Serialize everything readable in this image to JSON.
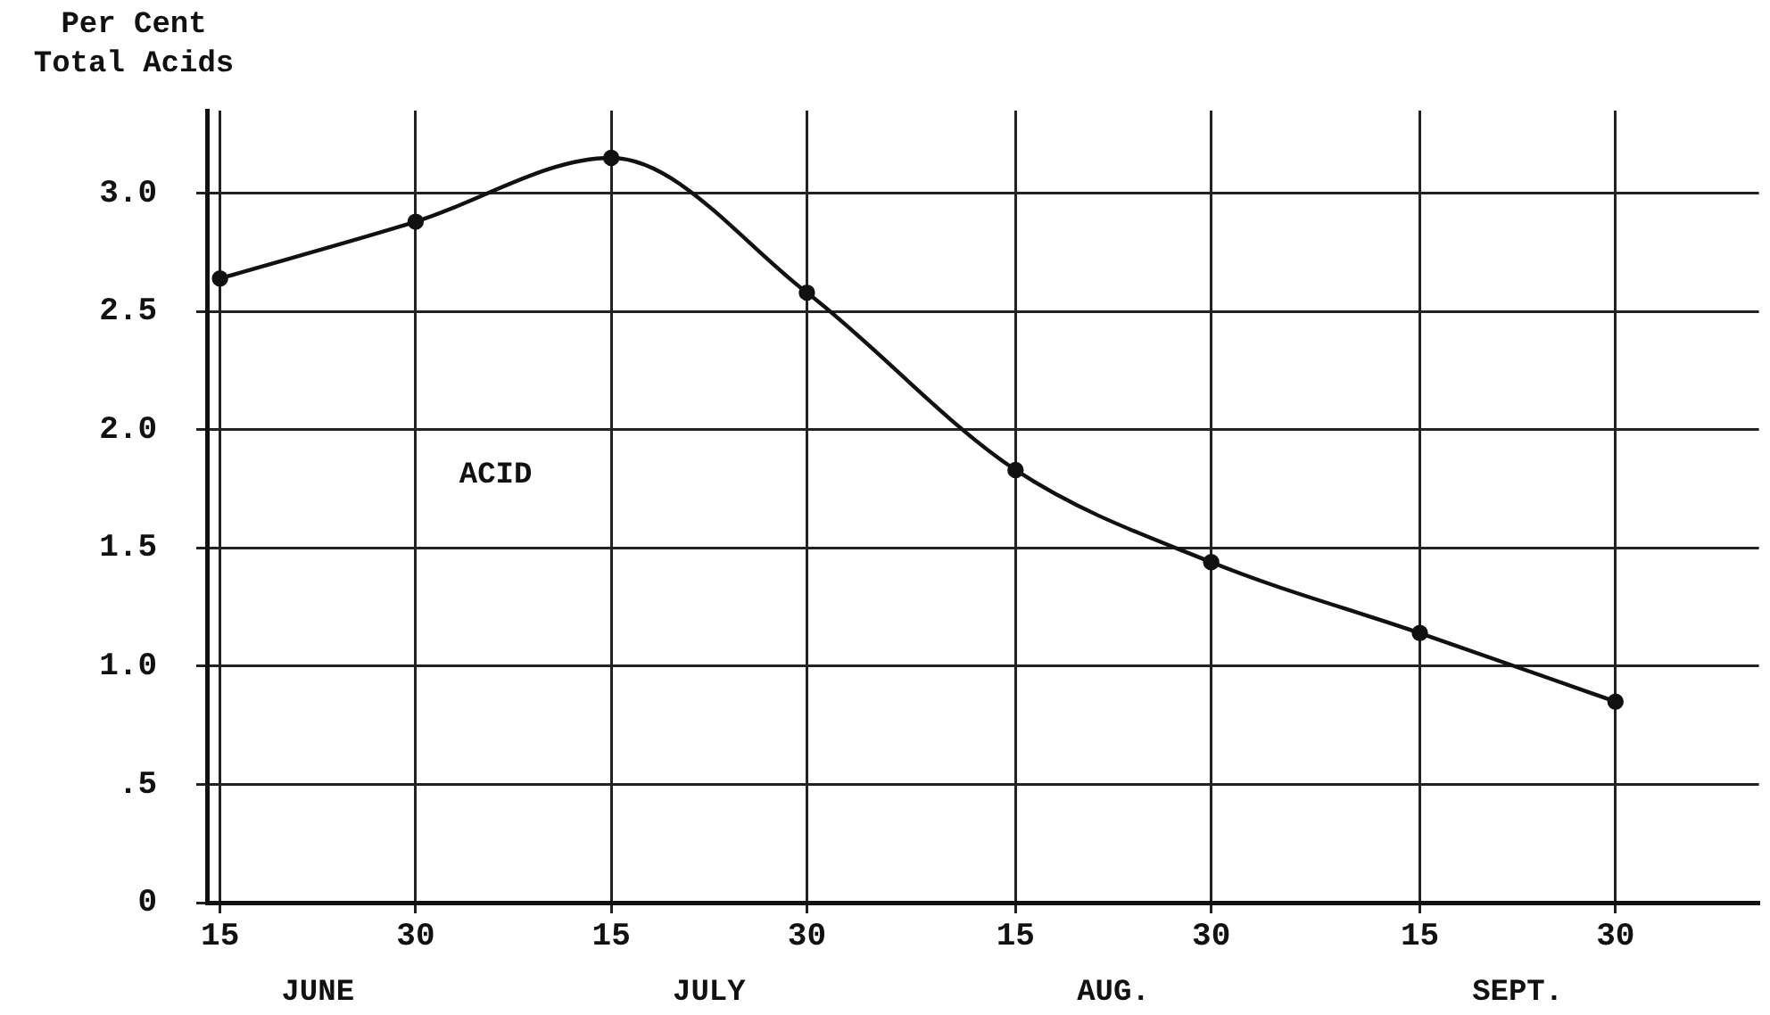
{
  "chart_data": {
    "type": "line",
    "ylabel": "Per Cent\nTotal Acids",
    "x": [
      "--06-15",
      "--06-30",
      "--07-15",
      "--07-30",
      "--08-15",
      "--08-30",
      "--09-15",
      "--09-30"
    ],
    "series": [
      {
        "name": "ACID",
        "color": "#111111",
        "values": [
          2.64,
          2.88,
          3.15,
          2.58,
          1.83,
          1.44,
          1.14,
          0.85
        ]
      }
    ],
    "xlim": [
      "--06-14",
      "--10-11"
    ],
    "xticks": [
      {
        "value": "--06-15",
        "label": "15"
      },
      {
        "value": "--06-30",
        "label": "30"
      },
      {
        "value": "--07-15",
        "label": "15"
      },
      {
        "value": "--07-30",
        "label": "30"
      },
      {
        "value": "--08-15",
        "label": "15"
      },
      {
        "value": "--08-30",
        "label": "30"
      },
      {
        "value": "--09-15",
        "label": "15"
      },
      {
        "value": "--09-30",
        "label": "30"
      }
    ],
    "ylim": [
      0,
      3.35
    ],
    "yticks": [
      0,
      {
        "value": 0.5,
        "label": ".5"
      },
      {
        "value": 1,
        "label": "1.0"
      },
      {
        "value": 1.5,
        "label": "1.5"
      },
      {
        "value": 2,
        "label": "2.0"
      },
      {
        "value": 2.5,
        "label": "2.5"
      },
      {
        "value": 3,
        "label": "3.0"
      }
    ],
    "annotations": [
      "JUNE",
      "JULY",
      "AUG.",
      "SEPT."
    ],
    "grid": true,
    "legend": false,
    "marker": "circle",
    "line_style": "solid"
  }
}
